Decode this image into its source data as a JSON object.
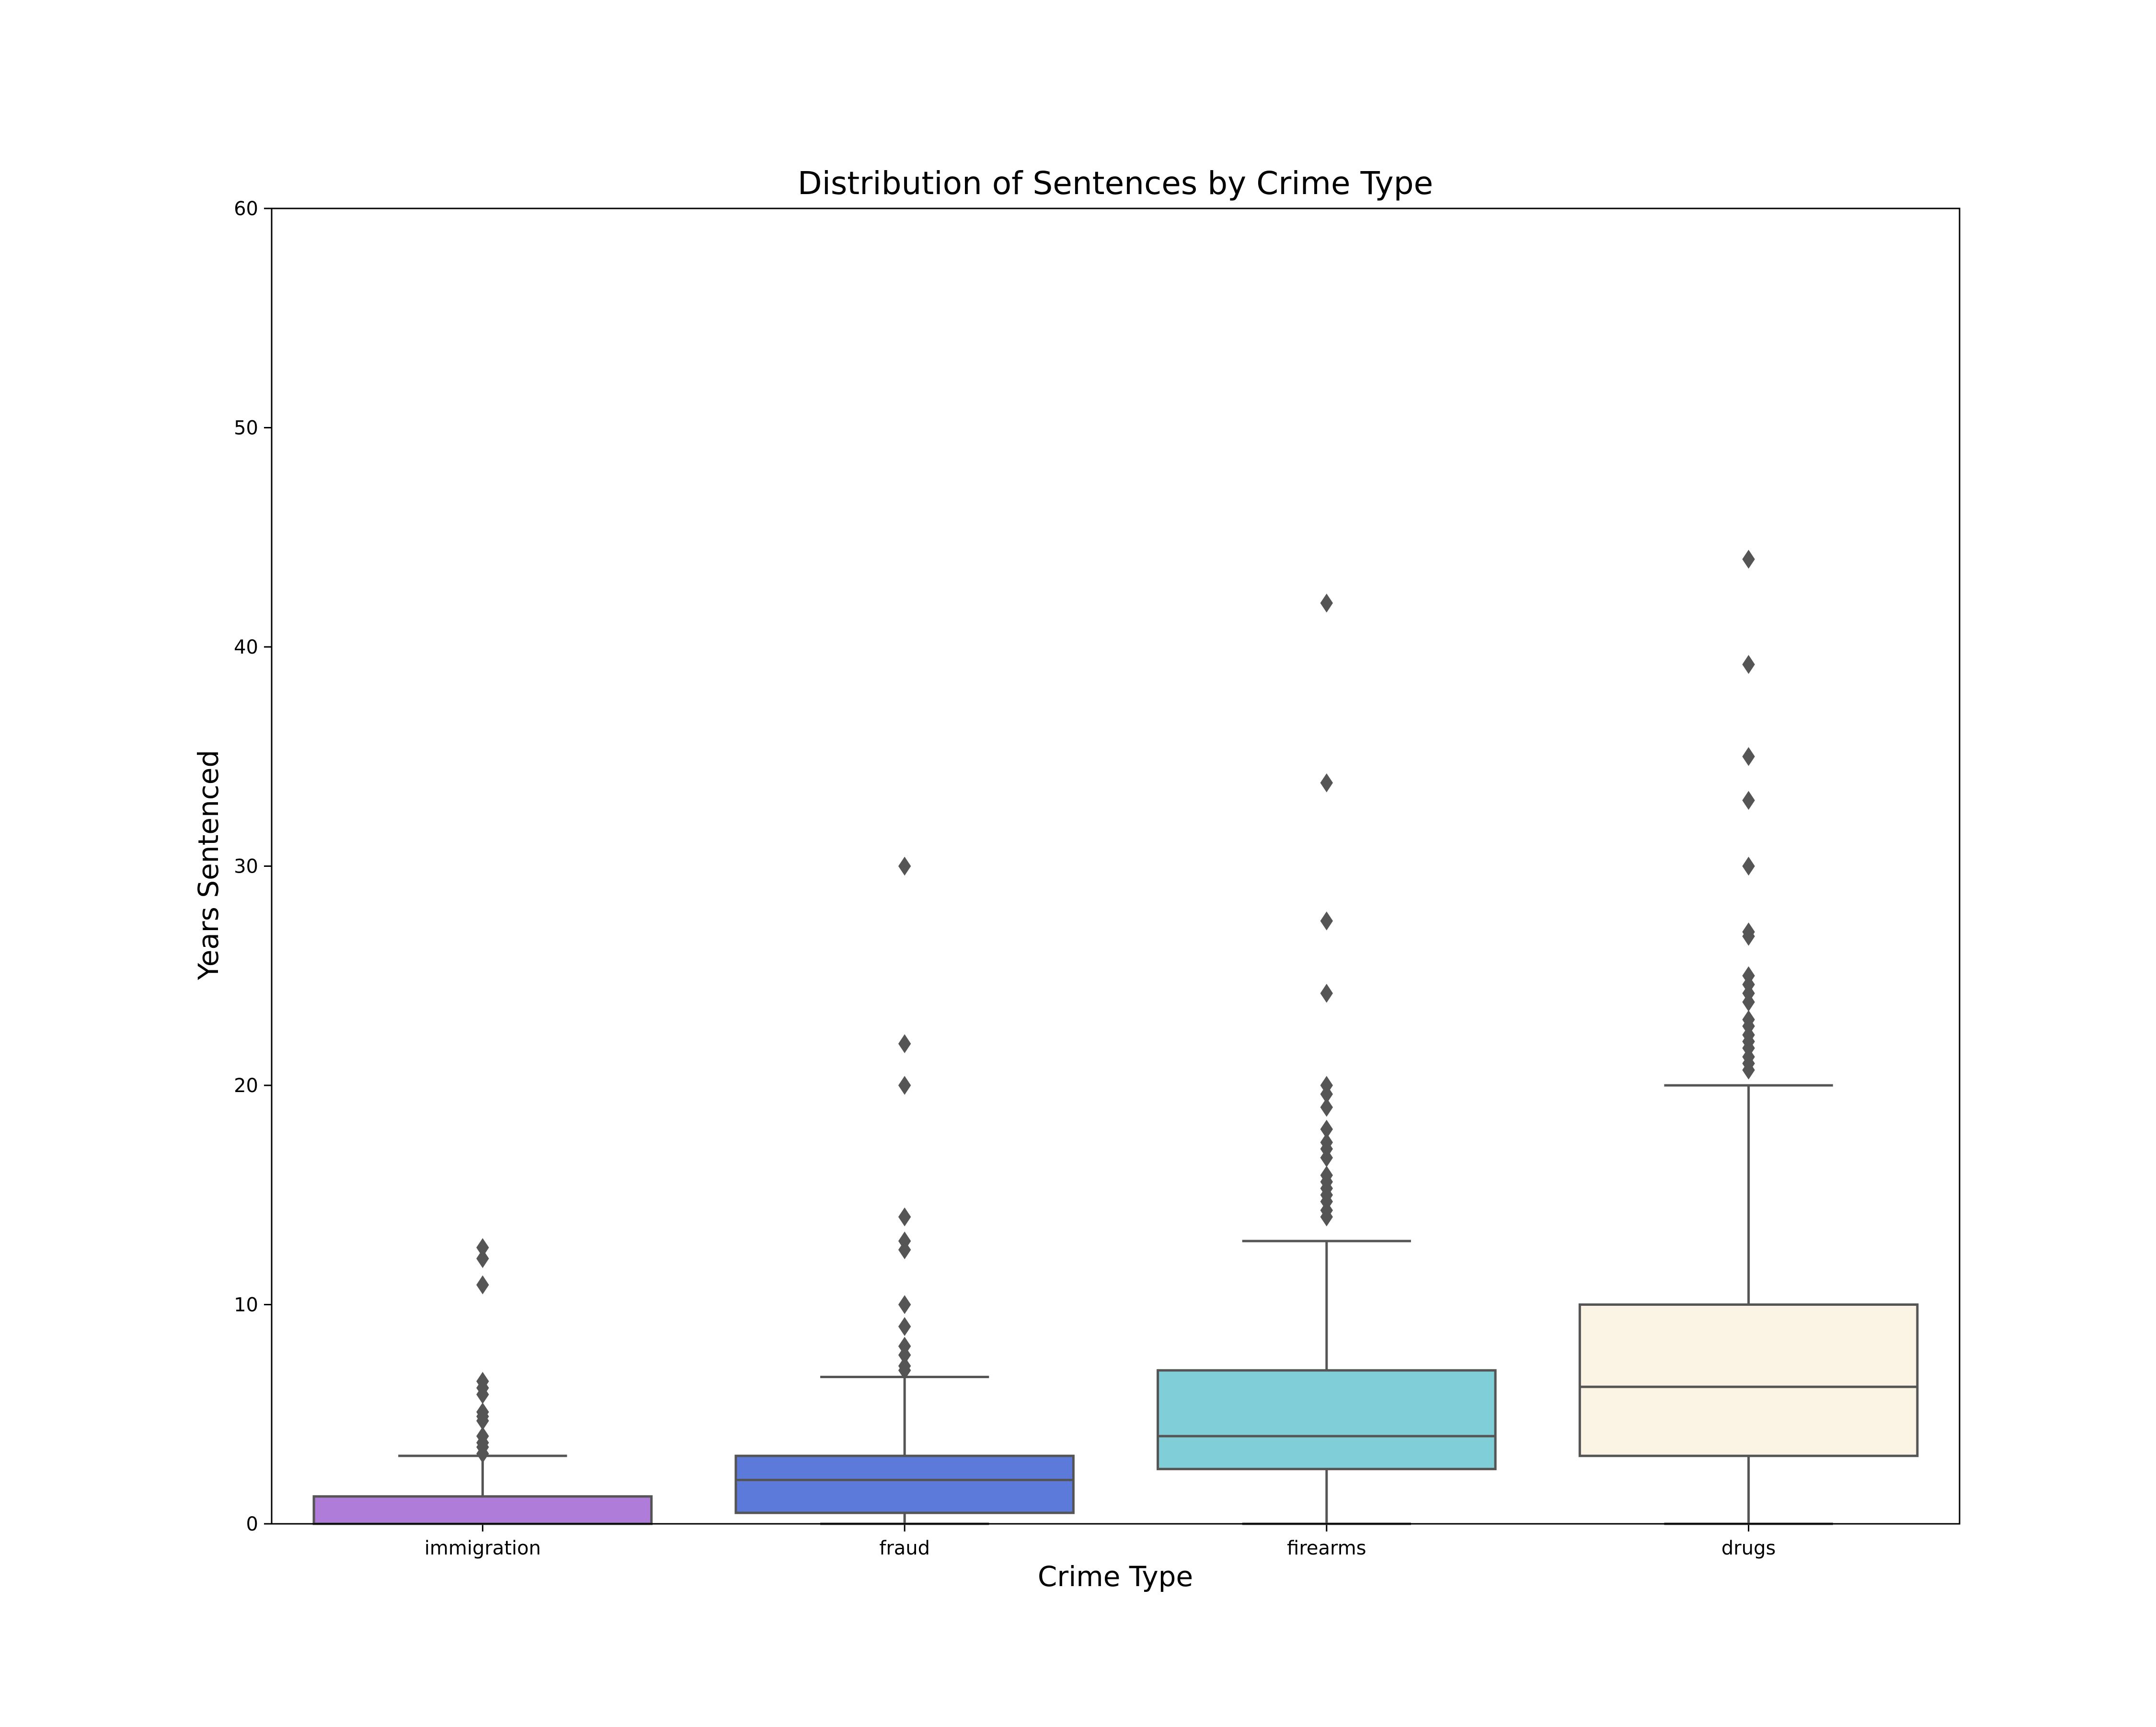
{
  "chart_data": {
    "type": "box",
    "title": "Distribution of Sentences by Crime Type",
    "xlabel": "Crime Type",
    "ylabel": "Years Sentenced",
    "ylim": [
      0,
      60
    ],
    "yticks": [
      0,
      10,
      20,
      30,
      40,
      50,
      60
    ],
    "grid": false,
    "legend": "none",
    "categories": [
      "immigration",
      "fraud",
      "firearms",
      "drugs"
    ],
    "boxes": [
      {
        "category": "immigration",
        "color": "#b07cd9",
        "whisker_low": 0,
        "q1": 0,
        "median": 0,
        "q3": 1.25,
        "whisker_high": 3.1,
        "outliers": [
          3.2,
          3.5,
          3.7,
          4.0,
          4.7,
          4.9,
          5.1,
          5.9,
          6.2,
          6.5,
          10.9,
          12.1,
          12.6
        ]
      },
      {
        "category": "fraud",
        "color": "#5c7ada",
        "whisker_low": 0,
        "q1": 0.5,
        "median": 2.0,
        "q3": 3.1,
        "whisker_high": 6.7,
        "outliers": [
          7.0,
          7.2,
          7.7,
          8.1,
          9.0,
          10.0,
          12.5,
          12.9,
          14.0,
          20.0,
          21.9,
          30.0
        ]
      },
      {
        "category": "firearms",
        "color": "#80ced7",
        "whisker_low": 0,
        "q1": 2.5,
        "median": 4.0,
        "q3": 7.0,
        "whisker_high": 12.9,
        "outliers": [
          14.0,
          14.3,
          14.7,
          15.0,
          15.3,
          15.6,
          15.9,
          16.7,
          17.1,
          17.4,
          18.0,
          19.0,
          19.6,
          20.0,
          24.2,
          27.5,
          33.8,
          42.0
        ]
      },
      {
        "category": "drugs",
        "color": "#fbf3e3",
        "whisker_low": 0,
        "q1": 3.1,
        "median": 6.25,
        "q3": 10.0,
        "whisker_high": 20.0,
        "outliers": [
          20.7,
          21.0,
          21.3,
          21.7,
          22.0,
          22.3,
          22.7,
          23.0,
          23.8,
          24.2,
          24.6,
          25.0,
          26.8,
          27.0,
          30.0,
          33.0,
          35.0,
          39.2,
          44.0
        ]
      }
    ]
  }
}
